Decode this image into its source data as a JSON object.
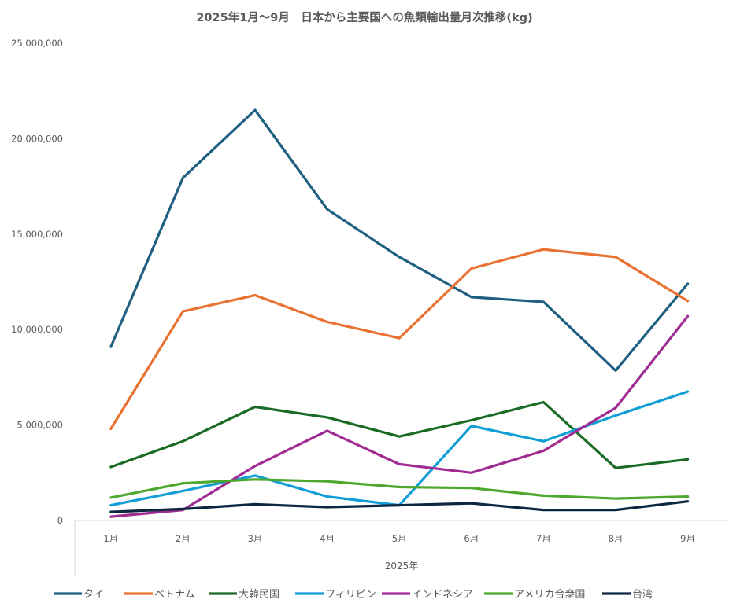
{
  "chart_data": {
    "type": "line",
    "title": "2025年1月～9月　日本から主要国への魚類輸出量月次推移(kg)",
    "xlabel": "2025年",
    "ylabel": "",
    "categories": [
      "1月",
      "2月",
      "3月",
      "4月",
      "5月",
      "6月",
      "7月",
      "8月",
      "9月"
    ],
    "ylim": [
      0,
      25000000
    ],
    "yticks": [
      0,
      5000000,
      10000000,
      15000000,
      20000000,
      25000000
    ],
    "ytick_labels": [
      "0",
      "5,000,000",
      "10,000,000",
      "15,000,000",
      "20,000,000",
      "25,000,000"
    ],
    "grid": false,
    "legend_position": "bottom",
    "series": [
      {
        "name": "タイ",
        "color": "#1f5f82",
        "values": [
          9100000,
          17950000,
          21500000,
          16300000,
          13800000,
          11700000,
          11450000,
          7850000,
          12400000
        ]
      },
      {
        "name": "ベトナム",
        "color": "#e97132",
        "values": [
          4800000,
          10950000,
          11800000,
          10400000,
          9550000,
          13200000,
          14200000,
          13800000,
          11500000
        ]
      },
      {
        "name": "大韓民国",
        "color": "#196b24",
        "values": [
          2800000,
          4150000,
          5950000,
          5400000,
          4400000,
          5250000,
          6200000,
          2750000,
          3200000
        ]
      },
      {
        "name": "フィリピン",
        "color": "#0f9ed5",
        "values": [
          800000,
          1550000,
          2350000,
          1250000,
          800000,
          4950000,
          4150000,
          5500000,
          6750000
        ]
      },
      {
        "name": "インドネシア",
        "color": "#a02b93",
        "values": [
          200000,
          550000,
          2850000,
          4700000,
          2950000,
          2500000,
          3650000,
          5900000,
          10700000
        ]
      },
      {
        "name": "アメリカ合衆国",
        "color": "#4ea72e",
        "values": [
          1200000,
          1950000,
          2150000,
          2050000,
          1750000,
          1700000,
          1300000,
          1150000,
          1250000
        ]
      },
      {
        "name": "台湾",
        "color": "#0e2841",
        "values": [
          450000,
          600000,
          850000,
          700000,
          800000,
          900000,
          550000,
          550000,
          1000000
        ]
      }
    ]
  }
}
